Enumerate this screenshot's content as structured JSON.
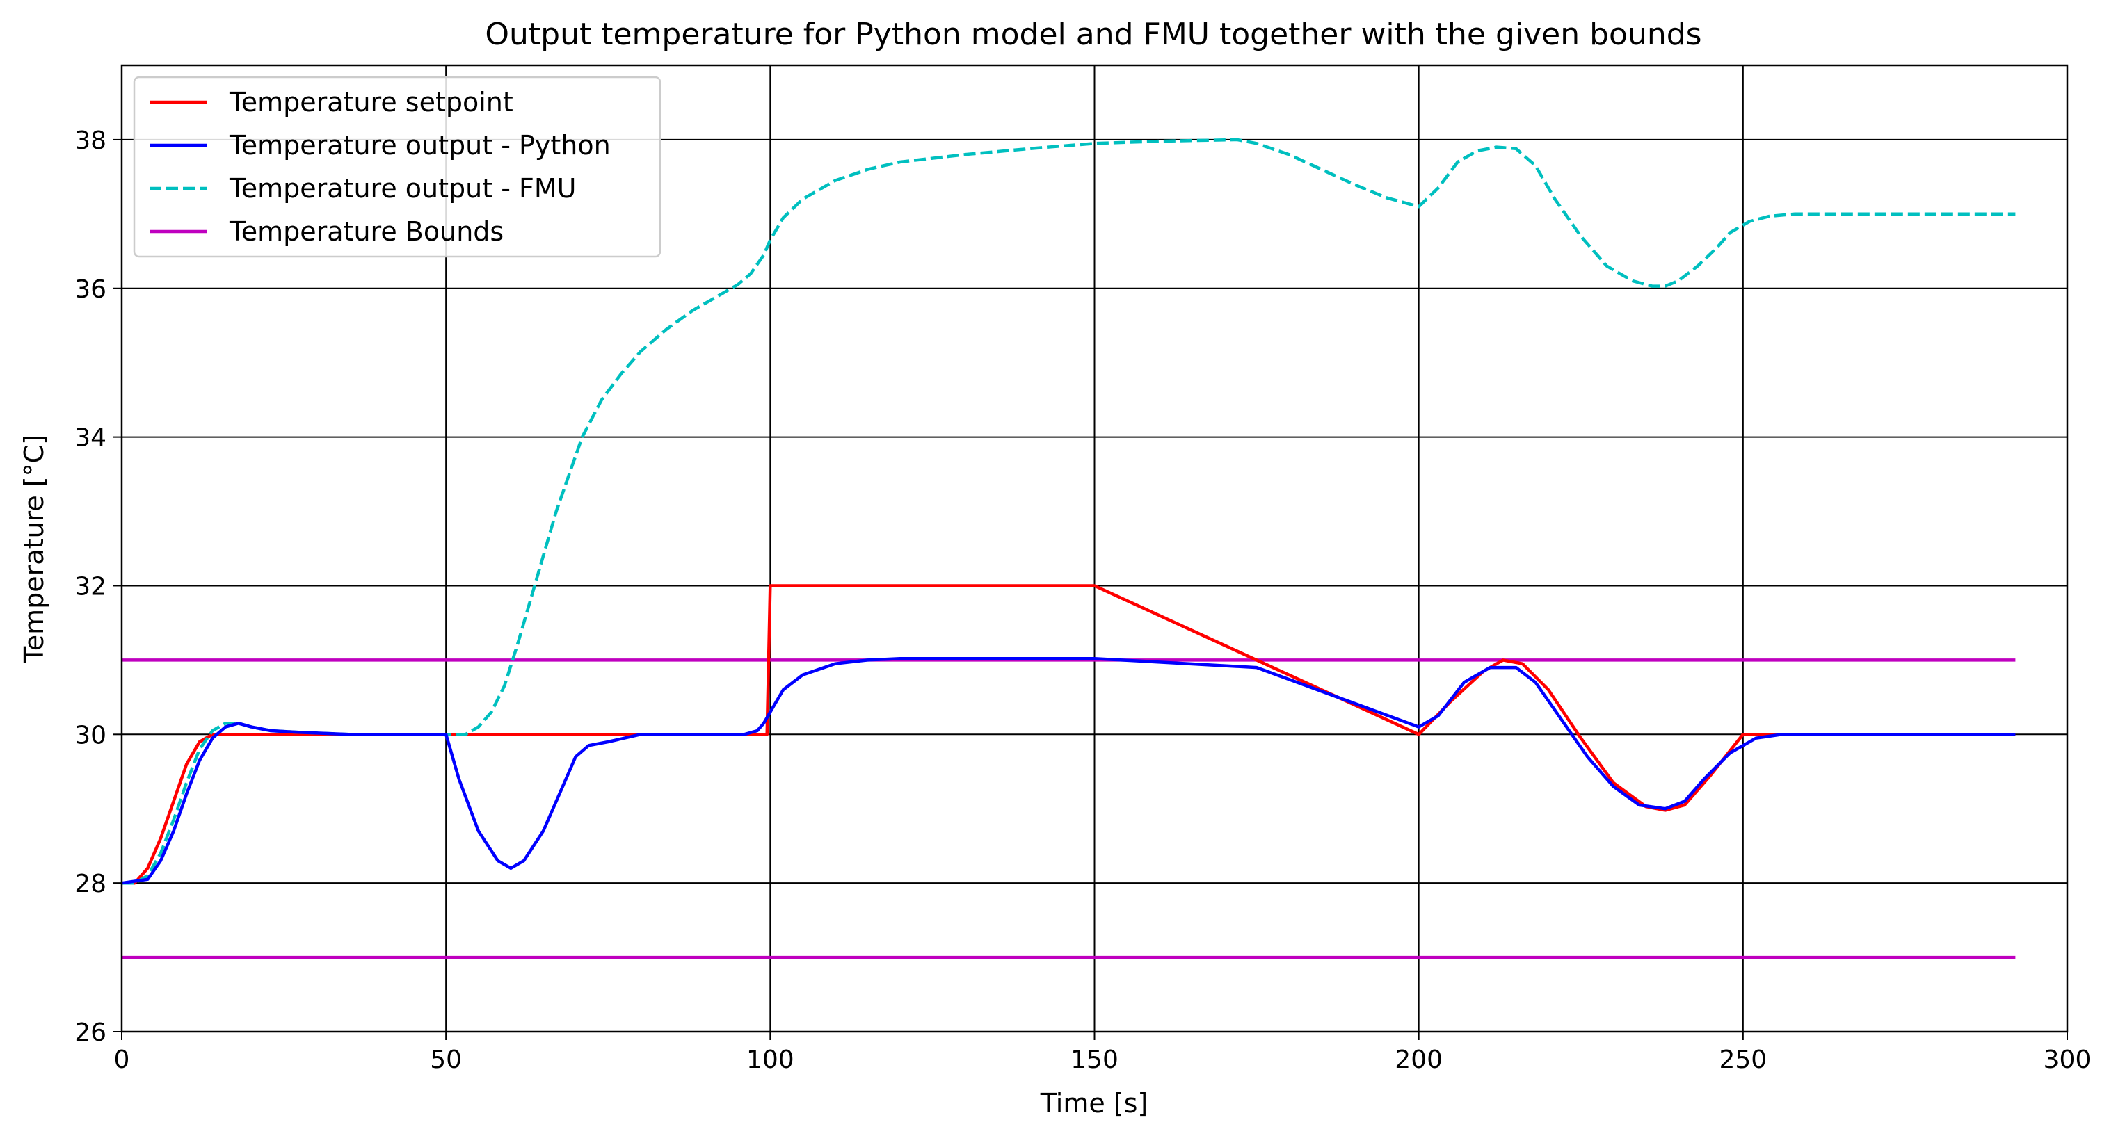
{
  "chart_data": {
    "type": "line",
    "title": "Output temperature for Python model and FMU together with the given bounds",
    "xlabel": "Time [s]",
    "ylabel": "Temperature [°C]",
    "xlim": [
      0,
      300
    ],
    "ylim": [
      26,
      39
    ],
    "xticks": [
      0,
      50,
      100,
      150,
      200,
      250,
      300
    ],
    "yticks": [
      26,
      28,
      30,
      32,
      34,
      36,
      38
    ],
    "xtick_labels": [
      "0",
      "50",
      "100",
      "150",
      "200",
      "250",
      "300"
    ],
    "ytick_labels": [
      "26",
      "28",
      "30",
      "32",
      "34",
      "36",
      "38"
    ],
    "grid": true,
    "legend_position": "top-left",
    "series": [
      {
        "name": "Temperature setpoint",
        "color": "#ff0000",
        "style": "solid",
        "x": [
          0,
          2,
          4,
          6,
          8,
          10,
          12,
          14,
          99.5,
          100,
          150,
          175,
          200,
          205,
          210,
          213,
          216,
          220,
          225,
          230,
          235,
          238,
          241,
          245,
          250,
          292
        ],
        "y": [
          28,
          28,
          28.2,
          28.6,
          29.1,
          29.6,
          29.9,
          30,
          30,
          32,
          32,
          31,
          30,
          30.45,
          30.85,
          31,
          30.95,
          30.6,
          29.95,
          29.35,
          29.03,
          28.98,
          29.05,
          29.45,
          30,
          30
        ]
      },
      {
        "name": "Temperature output - Python",
        "color": "#0000ff",
        "style": "solid",
        "x": [
          0,
          4,
          6,
          8,
          10,
          12,
          14,
          16,
          18,
          20,
          23,
          27,
          35,
          50,
          52,
          55,
          58,
          60,
          62,
          65,
          68,
          70,
          72,
          75,
          80,
          85,
          90,
          96,
          98,
          99,
          100,
          102,
          105,
          110,
          115,
          120,
          150,
          175,
          200,
          203,
          207,
          211,
          215,
          218,
          222,
          226,
          230,
          234,
          238,
          241,
          244,
          248,
          252,
          256,
          262,
          270,
          292
        ],
        "y": [
          28,
          28.05,
          28.3,
          28.7,
          29.2,
          29.65,
          29.95,
          30.1,
          30.15,
          30.1,
          30.05,
          30.03,
          30,
          30,
          29.4,
          28.7,
          28.3,
          28.2,
          28.3,
          28.7,
          29.3,
          29.7,
          29.85,
          29.9,
          30,
          30,
          30,
          30,
          30.05,
          30.15,
          30.3,
          30.6,
          30.8,
          30.95,
          31.0,
          31.02,
          31.02,
          30.9,
          30.1,
          30.25,
          30.7,
          30.9,
          30.9,
          30.7,
          30.2,
          29.7,
          29.3,
          29.05,
          29.0,
          29.1,
          29.4,
          29.75,
          29.95,
          30.0,
          30.0,
          30.0,
          30.0
        ]
      },
      {
        "name": "Temperature output - FMU",
        "color": "#00bfbf",
        "style": "dashed",
        "x": [
          0,
          2,
          4,
          6,
          8,
          10,
          12,
          14,
          16,
          18,
          20,
          23,
          27,
          35,
          50,
          53,
          55,
          57,
          59,
          61,
          63,
          65,
          67,
          69,
          71,
          74,
          77,
          80,
          84,
          88,
          92,
          95,
          97,
          99,
          100,
          102,
          105,
          110,
          115,
          120,
          130,
          140,
          150,
          160,
          172,
          175,
          180,
          185,
          190,
          195,
          200,
          203,
          206,
          209,
          212,
          215,
          218,
          221,
          225,
          229,
          233,
          236,
          238,
          240,
          243,
          246,
          248,
          251,
          254,
          258,
          265,
          280,
          292
        ],
        "y": [
          28,
          28,
          28.1,
          28.4,
          28.85,
          29.35,
          29.8,
          30.05,
          30.15,
          30.15,
          30.1,
          30.05,
          30.03,
          30,
          30,
          30.0,
          30.1,
          30.3,
          30.65,
          31.2,
          31.8,
          32.4,
          33.0,
          33.5,
          34.0,
          34.5,
          34.85,
          35.15,
          35.45,
          35.7,
          35.9,
          36.05,
          36.2,
          36.45,
          36.65,
          36.95,
          37.2,
          37.45,
          37.6,
          37.7,
          37.8,
          37.88,
          37.95,
          37.98,
          38.0,
          37.95,
          37.8,
          37.6,
          37.4,
          37.22,
          37.1,
          37.35,
          37.7,
          37.85,
          37.9,
          37.88,
          37.65,
          37.2,
          36.7,
          36.3,
          36.1,
          36.03,
          36.03,
          36.1,
          36.3,
          36.55,
          36.75,
          36.9,
          36.97,
          37.0,
          37.0,
          37.0,
          37.0
        ]
      },
      {
        "name": "Temperature Bounds",
        "color": "#bf00bf",
        "style": "solid",
        "x": [
          0,
          292
        ],
        "y": [
          31,
          31
        ]
      },
      {
        "name": "",
        "color": "#bf00bf",
        "style": "solid",
        "x": [
          0,
          292
        ],
        "y": [
          27,
          27
        ]
      }
    ]
  }
}
